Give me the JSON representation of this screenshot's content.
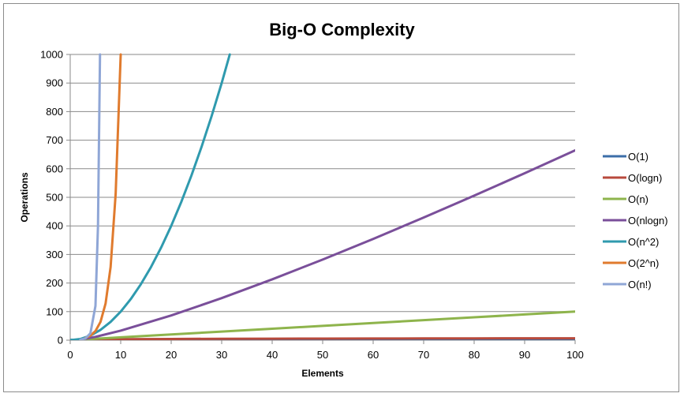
{
  "chart_data": {
    "type": "line",
    "title": "Big-O Complexity",
    "xlabel": "Elements",
    "ylabel": "Operations",
    "xlim": [
      0,
      100
    ],
    "ylim": [
      0,
      1000
    ],
    "x_ticks": [
      "0",
      "10",
      "20",
      "30",
      "40",
      "50",
      "60",
      "70",
      "80",
      "90",
      "100"
    ],
    "y_ticks": [
      "0",
      "100",
      "200",
      "300",
      "400",
      "500",
      "600",
      "700",
      "800",
      "900",
      "1000"
    ],
    "grid": "horizontal",
    "legend_position": "right",
    "series": [
      {
        "name": "O(1)",
        "color": "#3c6ea8",
        "x": [
          0,
          100
        ],
        "y": [
          1,
          1
        ]
      },
      {
        "name": "O(logn)",
        "color": "#b84a3c",
        "x": [
          1,
          2,
          5,
          10,
          20,
          30,
          40,
          50,
          60,
          70,
          80,
          90,
          100
        ],
        "y": [
          0,
          1,
          2.32,
          3.32,
          4.32,
          4.91,
          5.32,
          5.64,
          5.91,
          6.13,
          6.32,
          6.49,
          6.64
        ]
      },
      {
        "name": "O(n)",
        "color": "#8eb44c",
        "x": [
          0,
          10,
          20,
          30,
          40,
          50,
          60,
          70,
          80,
          90,
          100
        ],
        "y": [
          0,
          10,
          20,
          30,
          40,
          50,
          60,
          70,
          80,
          90,
          100
        ]
      },
      {
        "name": "O(nlogn)",
        "color": "#7a4f9a",
        "x": [
          1,
          2,
          5,
          10,
          20,
          30,
          40,
          50,
          60,
          70,
          80,
          90,
          100
        ],
        "y": [
          0,
          2,
          11.6,
          33.2,
          86.4,
          147.2,
          212.9,
          282.2,
          354.4,
          429.1,
          505.8,
          584.3,
          664.4
        ]
      },
      {
        "name": "O(n^2)",
        "color": "#2f9aae",
        "x": [
          0,
          2,
          4,
          6,
          8,
          10,
          12,
          14,
          16,
          18,
          20,
          22,
          24,
          26,
          28,
          30,
          31.6
        ],
        "y": [
          0,
          4,
          16,
          36,
          64,
          100,
          144,
          196,
          256,
          324,
          400,
          484,
          576,
          676,
          784,
          900,
          1000
        ]
      },
      {
        "name": "O(2^n)",
        "color": "#e07b2e",
        "x": [
          3,
          4,
          5,
          6,
          7,
          8,
          9,
          10
        ],
        "y": [
          8,
          16,
          32,
          64,
          128,
          256,
          512,
          1000
        ]
      },
      {
        "name": "O(n!)",
        "color": "#8fa6d6",
        "x": [
          2,
          3,
          4,
          5,
          5.5,
          5.9
        ],
        "y": [
          2,
          6,
          24,
          120,
          400,
          1000
        ]
      }
    ]
  }
}
